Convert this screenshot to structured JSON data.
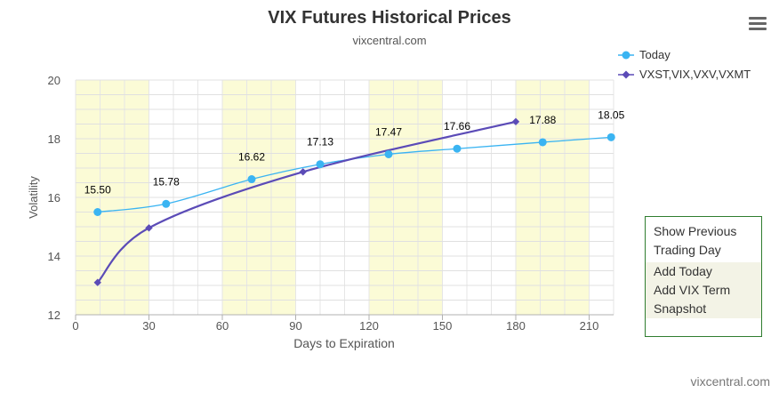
{
  "chart_data": {
    "type": "line",
    "title": "VIX Futures Historical Prices",
    "subtitle": "vixcentral.com",
    "xlabel": "Days to Expiration",
    "ylabel": "Volatility",
    "xlim": [
      0,
      220
    ],
    "ylim": [
      12,
      20
    ],
    "xticks": [
      0,
      30,
      60,
      90,
      120,
      150,
      180,
      210
    ],
    "yticks": [
      12,
      14,
      16,
      18,
      20
    ],
    "grid": true,
    "legend_position": "top-right",
    "shaded_x_bands": [
      [
        0,
        30
      ],
      [
        60,
        90
      ],
      [
        120,
        150
      ],
      [
        180,
        210
      ]
    ],
    "series": [
      {
        "name": "Today",
        "color": "#3ab4f2",
        "marker": "circle",
        "x": [
          9,
          37,
          72,
          100,
          128,
          156,
          191,
          219
        ],
        "y": [
          15.5,
          15.78,
          16.62,
          17.13,
          17.47,
          17.66,
          17.88,
          18.05
        ],
        "labels": [
          "15.50",
          "15.78",
          "16.62",
          "17.13",
          "17.47",
          "17.66",
          "17.88",
          "18.05"
        ]
      },
      {
        "name": "VXST,VIX,VXV,VXMT",
        "color": "#5b4bb7",
        "marker": "diamond",
        "x": [
          9,
          30,
          93,
          180
        ],
        "y": [
          13.1,
          14.96,
          16.87,
          18.58
        ]
      }
    ]
  },
  "menu": {
    "items": [
      "Show Previous Trading Day",
      "Add Today",
      "Add VIX Term",
      "Snapshot"
    ]
  },
  "credit": "vixcentral.com"
}
